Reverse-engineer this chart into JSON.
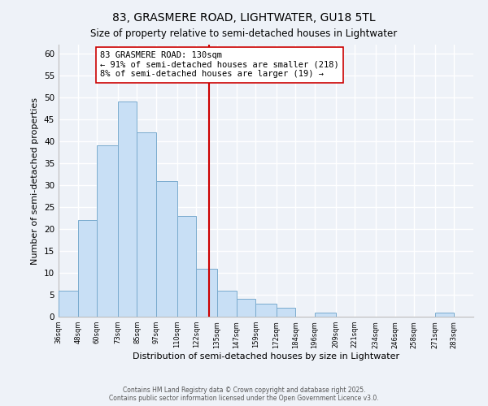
{
  "title": "83, GRASMERE ROAD, LIGHTWATER, GU18 5TL",
  "subtitle": "Size of property relative to semi-detached houses in Lightwater",
  "xlabel": "Distribution of semi-detached houses by size in Lightwater",
  "ylabel": "Number of semi-detached properties",
  "bin_labels": [
    "36sqm",
    "48sqm",
    "60sqm",
    "73sqm",
    "85sqm",
    "97sqm",
    "110sqm",
    "122sqm",
    "135sqm",
    "147sqm",
    "159sqm",
    "172sqm",
    "184sqm",
    "196sqm",
    "209sqm",
    "221sqm",
    "234sqm",
    "246sqm",
    "258sqm",
    "271sqm",
    "283sqm"
  ],
  "bin_edges": [
    36,
    48,
    60,
    73,
    85,
    97,
    110,
    122,
    135,
    147,
    159,
    172,
    184,
    196,
    209,
    221,
    234,
    246,
    258,
    271,
    283,
    295
  ],
  "counts": [
    6,
    22,
    39,
    49,
    42,
    31,
    23,
    11,
    6,
    4,
    3,
    2,
    0,
    1,
    0,
    0,
    0,
    0,
    0,
    1,
    0
  ],
  "property_size": 130,
  "bar_color": "#c8dff5",
  "bar_edge_color": "#7aabce",
  "vline_color": "#cc0000",
  "annotation_line1": "83 GRASMERE ROAD: 130sqm",
  "annotation_line2": "← 91% of semi-detached houses are smaller (218)",
  "annotation_line3": "8% of semi-detached houses are larger (19) →",
  "annotation_box_color": "#ffffff",
  "annotation_box_edge_color": "#cc0000",
  "ylim": [
    0,
    62
  ],
  "yticks": [
    0,
    5,
    10,
    15,
    20,
    25,
    30,
    35,
    40,
    45,
    50,
    55,
    60
  ],
  "footer_line1": "Contains HM Land Registry data © Crown copyright and database right 2025.",
  "footer_line2": "Contains public sector information licensed under the Open Government Licence v3.0.",
  "background_color": "#eef2f8",
  "grid_color": "#ffffff",
  "spine_color": "#bbbbbb"
}
